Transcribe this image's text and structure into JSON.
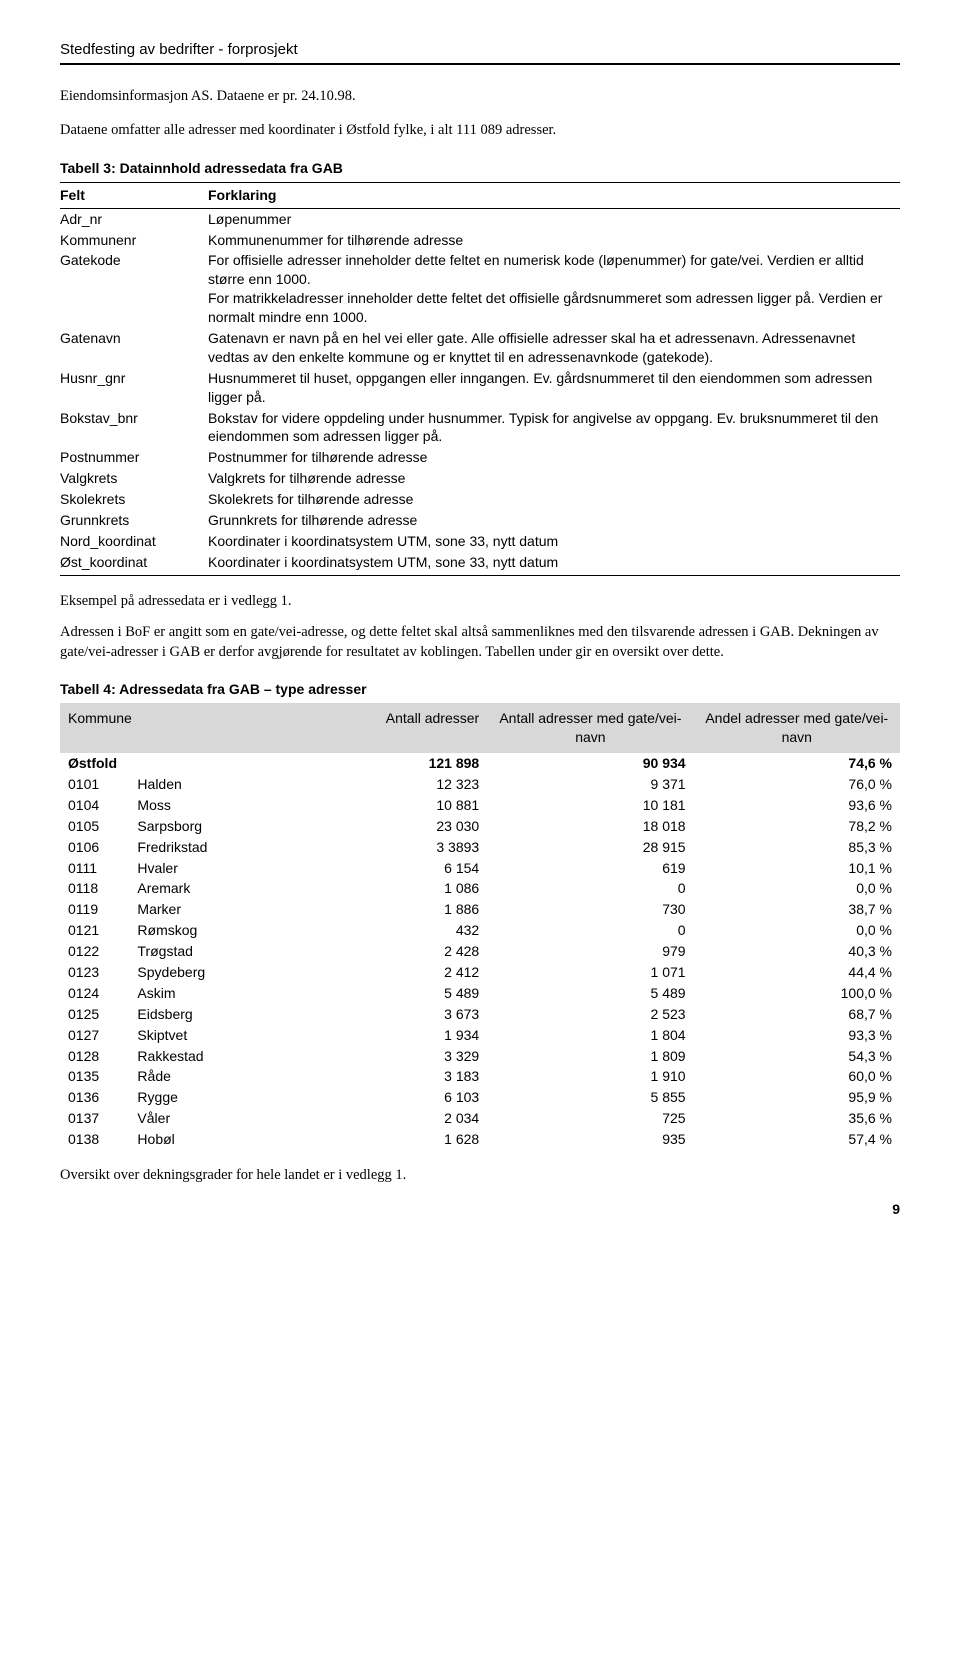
{
  "header": "Stedfesting av bedrifter - forprosjekt",
  "intro": [
    "Eiendomsinformasjon AS. Dataene er pr. 24.10.98.",
    "Dataene omfatter alle adresser med koordinater i Østfold fylke, i alt 111 089 adresser."
  ],
  "table3": {
    "caption": "Tabell 3:   Datainnhold adressedata fra GAB",
    "head": [
      "Felt",
      "Forklaring"
    ],
    "rows": [
      [
        "Adr_nr",
        "Løpenummer"
      ],
      [
        "Kommunenr",
        "Kommunenummer for tilhørende adresse"
      ],
      [
        "Gatekode",
        "For offisielle adresser inneholder dette feltet en numerisk kode (løpenummer) for gate/vei. Verdien er alltid større enn 1000.\nFor matrikkeladresser inneholder dette feltet det offisielle gårdsnummeret som adressen ligger på. Verdien er normalt mindre enn 1000."
      ],
      [
        "Gatenavn",
        "Gatenavn er navn på en hel vei eller gate. Alle offisielle adresser skal ha et adressenavn. Adressenavnet vedtas av den enkelte kommune og er knyttet til en adressenavnkode (gatekode)."
      ],
      [
        "Husnr_gnr",
        "Husnummeret til huset, oppgangen eller inngangen. Ev. gårdsnummeret til den eiendommen som adressen ligger på."
      ],
      [
        "Bokstav_bnr",
        "Bokstav for videre oppdeling under husnummer. Typisk for angivelse av oppgang. Ev. bruksnummeret til den eiendommen som adressen ligger på."
      ],
      [
        "Postnummer",
        "Postnummer for tilhørende adresse"
      ],
      [
        "Valgkrets",
        "Valgkrets for tilhørende adresse"
      ],
      [
        "Skolekrets",
        "Skolekrets for tilhørende adresse"
      ],
      [
        "Grunnkrets",
        "Grunnkrets for tilhørende adresse"
      ],
      [
        "Nord_koordinat",
        "Koordinater i koordinatsystem UTM, sone 33, nytt datum"
      ],
      [
        "Øst_koordinat",
        "Koordinater i koordinatsystem UTM, sone 33, nytt datum"
      ]
    ]
  },
  "mid_paras": [
    "Eksempel på adressedata er i vedlegg 1.",
    "Adressen i BoF er angitt som en gate/vei-adresse, og dette feltet skal altså sammenliknes med den tilsvarende adressen i GAB. Dekningen av gate/vei-adresser i GAB er derfor avgjørende for resultatet av koblingen. Tabellen under gir en oversikt over dette."
  ],
  "table4": {
    "caption": "Tabell 4:   Adressedata fra GAB – type adresser",
    "head": [
      "Kommune",
      "Antall adresser",
      "Antall adresser med gate/vei-navn",
      "Andel adresser med gate/vei-navn"
    ],
    "total": [
      "Østfold",
      "121 898",
      "90 934",
      "74,6 %"
    ],
    "rows": [
      [
        "0101",
        "Halden",
        "12 323",
        "9 371",
        "76,0 %"
      ],
      [
        "0104",
        "Moss",
        "10 881",
        "10 181",
        "93,6 %"
      ],
      [
        "0105",
        "Sarpsborg",
        "23 030",
        "18 018",
        "78,2 %"
      ],
      [
        "0106",
        "Fredrikstad",
        "3 3893",
        "28 915",
        "85,3 %"
      ],
      [
        "0111",
        "Hvaler",
        "6 154",
        "619",
        "10,1 %"
      ],
      [
        "0118",
        "Aremark",
        "1 086",
        "0",
        "0,0 %"
      ],
      [
        "0119",
        "Marker",
        "1 886",
        "730",
        "38,7 %"
      ],
      [
        "0121",
        "Rømskog",
        "432",
        "0",
        "0,0 %"
      ],
      [
        "0122",
        "Trøgstad",
        "2 428",
        "979",
        "40,3 %"
      ],
      [
        "0123",
        "Spydeberg",
        "2 412",
        "1 071",
        "44,4 %"
      ],
      [
        "0124",
        "Askim",
        "5 489",
        "5 489",
        "100,0 %"
      ],
      [
        "0125",
        "Eidsberg",
        "3 673",
        "2 523",
        "68,7 %"
      ],
      [
        "0127",
        "Skiptvet",
        "1 934",
        "1 804",
        "93,3 %"
      ],
      [
        "0128",
        "Rakkestad",
        "3 329",
        "1 809",
        "54,3 %"
      ],
      [
        "0135",
        "Råde",
        "3 183",
        "1 910",
        "60,0 %"
      ],
      [
        "0136",
        "Rygge",
        "6 103",
        "5 855",
        "95,9 %"
      ],
      [
        "0137",
        "Våler",
        "2 034",
        "725",
        "35,6 %"
      ],
      [
        "0138",
        "Hobøl",
        "1 628",
        "935",
        "57,4 %"
      ]
    ]
  },
  "closing": "Oversikt over dekningsgrader for hele landet er i vedlegg 1.",
  "page": "9"
}
